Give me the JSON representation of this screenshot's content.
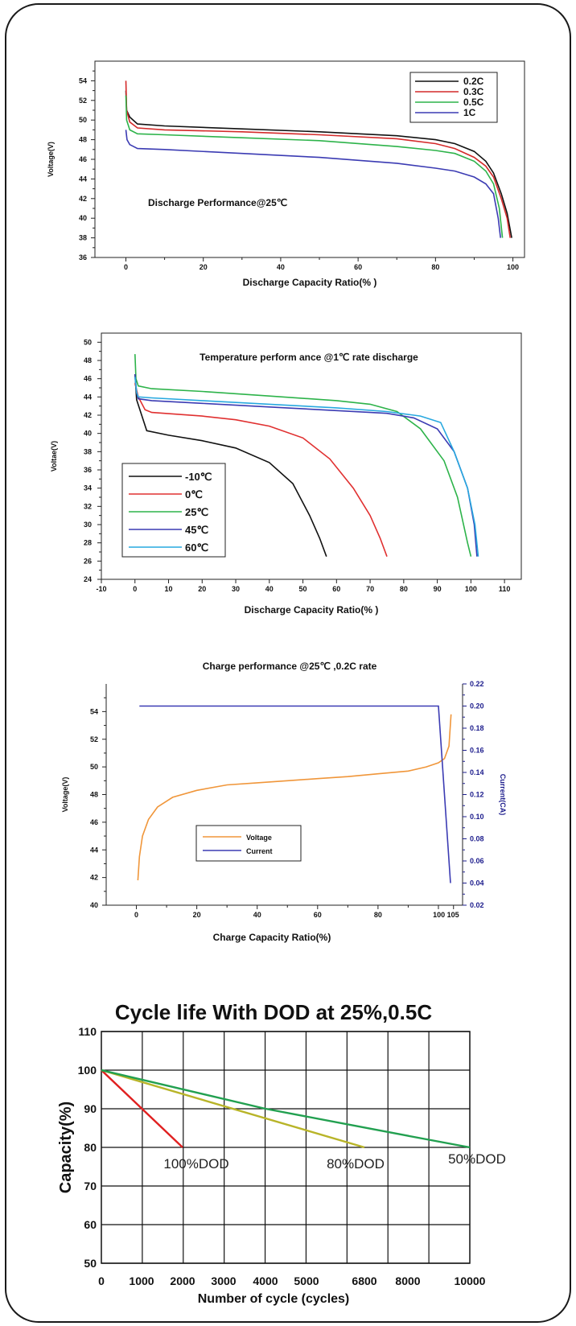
{
  "chart_data": [
    {
      "type": "line",
      "title": "Discharge Performance@25℃",
      "xlabel": "Discharge Capacity Ratio(% )",
      "ylabel": "Voltage(V)",
      "xlim": [
        -8,
        103
      ],
      "ylim": [
        36,
        56
      ],
      "xticks": [
        0,
        20,
        40,
        60,
        80,
        100
      ],
      "yticks": [
        36,
        38,
        40,
        42,
        44,
        46,
        48,
        50,
        52,
        54
      ],
      "legend_position": "top-right",
      "series": [
        {
          "name": "0.2C",
          "color": "#111111",
          "points": [
            [
              0,
              53
            ],
            [
              0.2,
              51
            ],
            [
              1,
              50.3
            ],
            [
              3,
              49.6
            ],
            [
              10,
              49.4
            ],
            [
              30,
              49.1
            ],
            [
              50,
              48.8
            ],
            [
              70,
              48.4
            ],
            [
              80,
              48.0
            ],
            [
              85,
              47.6
            ],
            [
              90,
              46.8
            ],
            [
              93,
              45.8
            ],
            [
              95,
              44.6
            ],
            [
              97,
              42.5
            ],
            [
              98.5,
              40.5
            ],
            [
              99.7,
              38
            ]
          ]
        },
        {
          "name": "0.3C",
          "color": "#d42a2a",
          "points": [
            [
              0,
              54
            ],
            [
              0.2,
              51
            ],
            [
              1,
              49.8
            ],
            [
              3,
              49.2
            ],
            [
              10,
              49.0
            ],
            [
              30,
              48.8
            ],
            [
              50,
              48.5
            ],
            [
              70,
              48.1
            ],
            [
              80,
              47.6
            ],
            [
              85,
              47.1
            ],
            [
              90,
              46.2
            ],
            [
              93,
              45.3
            ],
            [
              95,
              44.2
            ],
            [
              97,
              42
            ],
            [
              98.5,
              40
            ],
            [
              99.3,
              38
            ]
          ]
        },
        {
          "name": "0.5C",
          "color": "#2db34a",
          "points": [
            [
              0,
              52.5
            ],
            [
              0.2,
              50
            ],
            [
              1,
              49
            ],
            [
              3,
              48.6
            ],
            [
              10,
              48.5
            ],
            [
              30,
              48.2
            ],
            [
              50,
              47.9
            ],
            [
              70,
              47.3
            ],
            [
              80,
              46.9
            ],
            [
              85,
              46.6
            ],
            [
              90,
              45.8
            ],
            [
              93,
              44.8
            ],
            [
              95,
              43.5
            ],
            [
              96.5,
              41
            ],
            [
              97.3,
              38
            ]
          ]
        },
        {
          "name": "1C",
          "color": "#3b3bb3",
          "points": [
            [
              0,
              49
            ],
            [
              0.3,
              48
            ],
            [
              1,
              47.5
            ],
            [
              3,
              47.1
            ],
            [
              10,
              47.0
            ],
            [
              30,
              46.6
            ],
            [
              50,
              46.2
            ],
            [
              70,
              45.6
            ],
            [
              80,
              45.1
            ],
            [
              85,
              44.8
            ],
            [
              90,
              44.2
            ],
            [
              93,
              43.5
            ],
            [
              95,
              42.5
            ],
            [
              96.2,
              40
            ],
            [
              96.8,
              38
            ]
          ]
        }
      ]
    },
    {
      "type": "line",
      "title": "Temperature perform ance @1℃ rate discharge",
      "xlabel": "Discharge Capacity Ratio(% )",
      "ylabel": "Voltae(V)",
      "xlim": [
        -10,
        115
      ],
      "ylim": [
        24,
        51
      ],
      "xticks": [
        -10,
        0,
        10,
        20,
        30,
        40,
        50,
        60,
        70,
        80,
        90,
        100,
        110
      ],
      "yticks": [
        24,
        26,
        28,
        30,
        32,
        34,
        36,
        38,
        40,
        42,
        44,
        46,
        48,
        50
      ],
      "legend_position": "bottom-left",
      "series": [
        {
          "name": "-10℃",
          "color": "#111111",
          "points": [
            [
              0,
              46.5
            ],
            [
              0.5,
              43.7
            ],
            [
              2,
              42
            ],
            [
              3.5,
              40.3
            ],
            [
              10,
              39.8
            ],
            [
              20,
              39.2
            ],
            [
              30,
              38.4
            ],
            [
              40,
              36.8
            ],
            [
              47,
              34.5
            ],
            [
              52,
              31
            ],
            [
              55,
              28.5
            ],
            [
              57,
              26.5
            ]
          ]
        },
        {
          "name": "0℃",
          "color": "#e03030",
          "points": [
            [
              0,
              45.5
            ],
            [
              1,
              44
            ],
            [
              3,
              42.6
            ],
            [
              5,
              42.3
            ],
            [
              20,
              41.9
            ],
            [
              30,
              41.5
            ],
            [
              40,
              40.8
            ],
            [
              50,
              39.5
            ],
            [
              58,
              37.2
            ],
            [
              65,
              34
            ],
            [
              70,
              31
            ],
            [
              73,
              28.5
            ],
            [
              75,
              26.5
            ]
          ]
        },
        {
          "name": "25℃",
          "color": "#2db34a",
          "points": [
            [
              0,
              48.7
            ],
            [
              0.3,
              46
            ],
            [
              1,
              45.2
            ],
            [
              5,
              44.9
            ],
            [
              20,
              44.6
            ],
            [
              40,
              44.1
            ],
            [
              60,
              43.6
            ],
            [
              70,
              43.2
            ],
            [
              78,
              42.4
            ],
            [
              85,
              40.5
            ],
            [
              92,
              37
            ],
            [
              96,
              33
            ],
            [
              99,
              28
            ],
            [
              100,
              26.5
            ]
          ]
        },
        {
          "name": "45℃",
          "color": "#3b3bb3",
          "points": [
            [
              0,
              46.5
            ],
            [
              0.5,
              44.5
            ],
            [
              1,
              43.8
            ],
            [
              5,
              43.6
            ],
            [
              20,
              43.3
            ],
            [
              40,
              42.9
            ],
            [
              60,
              42.5
            ],
            [
              75,
              42.2
            ],
            [
              83,
              41.7
            ],
            [
              90,
              40.5
            ],
            [
              95,
              38
            ],
            [
              99,
              34
            ],
            [
              101,
              30
            ],
            [
              101.8,
              26.5
            ]
          ]
        },
        {
          "name": "60℃",
          "color": "#27a8df",
          "points": [
            [
              0,
              46.2
            ],
            [
              0.5,
              44.5
            ],
            [
              1,
              44
            ],
            [
              5,
              43.9
            ],
            [
              20,
              43.6
            ],
            [
              40,
              43.2
            ],
            [
              60,
              42.8
            ],
            [
              75,
              42.4
            ],
            [
              85,
              41.9
            ],
            [
              91,
              41.2
            ],
            [
              95,
              38
            ],
            [
              99,
              34
            ],
            [
              101.2,
              30
            ],
            [
              102.2,
              26.5
            ]
          ]
        }
      ]
    },
    {
      "type": "line",
      "title": "Charge performance @25℃ ,0.2C rate",
      "xlabel": "Charge Capacity Ratio(%)",
      "ylabel": "Voltage(V)",
      "y2label": "Current(CA)",
      "xlim": [
        -10,
        108
      ],
      "ylim": [
        40,
        56
      ],
      "y2lim": [
        0.02,
        0.22
      ],
      "xticks": [
        0,
        20,
        40,
        60,
        80
      ],
      "xtick_extra": "100 105",
      "yticks": [
        40,
        42,
        44,
        46,
        48,
        50,
        52,
        54
      ],
      "y2ticks": [
        0.02,
        0.04,
        0.06,
        0.08,
        0.1,
        0.12,
        0.14,
        0.16,
        0.18,
        0.2,
        0.22
      ],
      "legend_position": "bottom-left",
      "series": [
        {
          "name": "Voltage",
          "color": "#f0963a",
          "axis": "y",
          "points": [
            [
              0.5,
              41.8
            ],
            [
              1,
              43.5
            ],
            [
              2,
              45
            ],
            [
              4,
              46.2
            ],
            [
              7,
              47.1
            ],
            [
              12,
              47.8
            ],
            [
              20,
              48.3
            ],
            [
              30,
              48.7
            ],
            [
              40,
              48.85
            ],
            [
              50,
              49.0
            ],
            [
              60,
              49.15
            ],
            [
              70,
              49.3
            ],
            [
              80,
              49.5
            ],
            [
              90,
              49.7
            ],
            [
              96,
              50.0
            ],
            [
              100,
              50.3
            ],
            [
              102,
              50.6
            ],
            [
              103.5,
              51.5
            ],
            [
              104.2,
              53.8
            ]
          ]
        },
        {
          "name": "Current",
          "color": "#3b3bb3",
          "axis": "y2",
          "points": [
            [
              1,
              0.2
            ],
            [
              100,
              0.2
            ],
            [
              104,
              0.04
            ]
          ]
        }
      ]
    },
    {
      "type": "line",
      "title": "Cycle life With DOD at 25%,0.5C",
      "xlabel": "Number of cycle (cycles)",
      "ylabel": "Capacity(%)",
      "ylim": [
        50,
        110
      ],
      "xtick_labels": [
        "0",
        "1000",
        "2000",
        "3000",
        "4000",
        "5000",
        "6800",
        "8000",
        "10000"
      ],
      "yticks": [
        50,
        60,
        70,
        80,
        90,
        100,
        110
      ],
      "grid": true,
      "annotations": [
        "100%DOD",
        "80%DOD",
        "50%DOD"
      ],
      "series": [
        {
          "name": "100%DOD",
          "color": "#e02020",
          "points": [
            [
              0,
              100
            ],
            [
              2000,
              80
            ]
          ]
        },
        {
          "name": "80%DOD",
          "color": "#b8b428",
          "points": [
            [
              0,
              100
            ],
            [
              6800,
              80
            ]
          ]
        },
        {
          "name": "50%DOD",
          "color": "#22a050",
          "points": [
            [
              0,
              100
            ],
            [
              4000,
              90
            ],
            [
              8000,
              83
            ],
            [
              10000,
              80
            ]
          ]
        }
      ]
    }
  ]
}
